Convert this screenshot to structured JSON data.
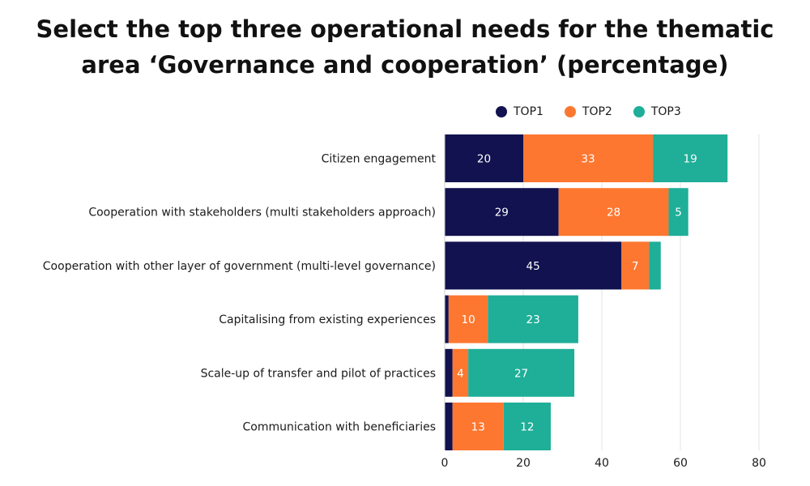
{
  "title_lines": [
    "Select the top three operational needs for the thematic",
    "area ‘Governance and cooperation’ (percentage)"
  ],
  "chart_data": {
    "type": "bar",
    "orientation": "horizontal",
    "stacked": true,
    "title": "Select the top three operational needs for the thematic area ‘Governance and cooperation’ (percentage)",
    "categories": [
      "Citizen engagement",
      "Cooperation with stakeholders (multi stakeholders approach)",
      "Cooperation with other layer of government (multi-level governance)",
      "Capitalising from existing experiences",
      "Scale-up of transfer and pilot of practices",
      "Communication with beneficiaries"
    ],
    "series": [
      {
        "name": "TOP1",
        "color": "#11124f",
        "values": [
          20,
          29,
          45,
          1,
          2,
          2
        ],
        "labels": [
          "20",
          "29",
          "45",
          "",
          "",
          ""
        ]
      },
      {
        "name": "TOP2",
        "color": "#fd7730",
        "values": [
          33,
          28,
          7,
          10,
          4,
          13
        ],
        "labels": [
          "33",
          "28",
          "7",
          "10",
          "4",
          "13"
        ]
      },
      {
        "name": "TOP3",
        "color": "#1fae98",
        "values": [
          19,
          5,
          3,
          23,
          27,
          12
        ],
        "labels": [
          "19",
          "5",
          "",
          "23",
          "27",
          "12"
        ]
      }
    ],
    "xlim": [
      0,
      80
    ],
    "xticks": [
      0,
      20,
      40,
      60,
      80
    ],
    "grid": true,
    "legend_position": "top-right"
  }
}
